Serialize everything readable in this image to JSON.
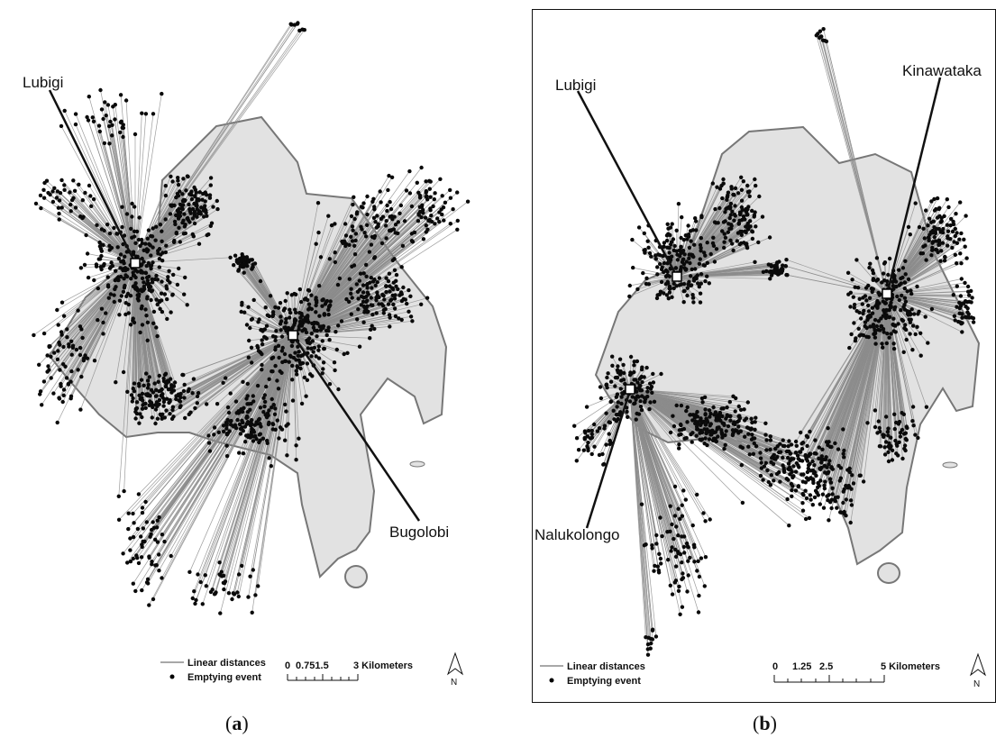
{
  "panels": [
    {
      "id": "a",
      "caption_open": "(",
      "caption_letter": "a",
      "caption_close": ")",
      "hubs": [
        {
          "name": "Lubigi"
        },
        {
          "name": "Bugolobi"
        }
      ],
      "legend": {
        "line_label": "Linear distances",
        "point_label": "Emptying event"
      },
      "scale": {
        "labels": [
          "0",
          "0.751.5",
          "3 Kilometers"
        ]
      },
      "north_label": "N"
    },
    {
      "id": "b",
      "caption_open": "(",
      "caption_letter": "b",
      "caption_close": ")",
      "hubs": [
        {
          "name": "Lubigi"
        },
        {
          "name": "Kinawataka"
        },
        {
          "name": "Nalukolongo"
        }
      ],
      "legend": {
        "line_label": "Linear distances",
        "point_label": "Emptying event"
      },
      "scale": {
        "labels": [
          "0",
          "1.25",
          "2.5",
          "5 Kilometers"
        ]
      },
      "north_label": "N"
    }
  ],
  "colors": {
    "land": "#e2e2e2",
    "boundary": "#777777",
    "lines": "#8c8c8c",
    "dots": "#0a0a0a",
    "hub_lines": "#111111"
  }
}
